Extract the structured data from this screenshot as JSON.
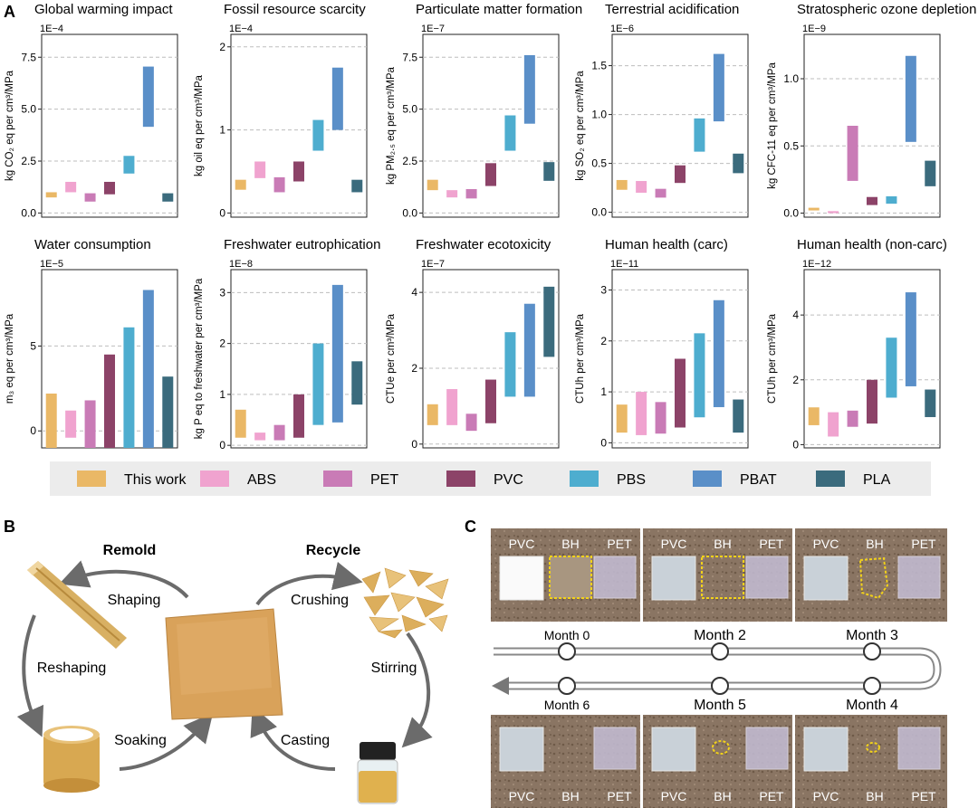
{
  "panel_letters": {
    "a": "A",
    "b": "B",
    "c": "C"
  },
  "colors": {
    "This work": "#EAB866",
    "ABS": "#F0A3CF",
    "PET": "#C97BB6",
    "PVC": "#8C4368",
    "PBS": "#4EADCF",
    "PBAT": "#5A8FC8",
    "PLA": "#3B6B7D"
  },
  "legend": [
    "This work",
    "ABS",
    "PET",
    "PVC",
    "PBS",
    "PBAT",
    "PLA"
  ],
  "chart_data": [
    {
      "type": "bar",
      "title": "Global warming impact",
      "exponent": "1E−4",
      "ylabel": "kg CO₂ eq per cm³/MPa",
      "ylim": [
        -0.2,
        8.6
      ],
      "ticks": [
        0,
        2.5,
        5,
        7.5
      ],
      "tick_labels": [
        "0.0",
        "2.5",
        "5.0",
        "7.5"
      ],
      "categories": [
        "This work",
        "ABS",
        "PET",
        "PVC",
        "PBS",
        "PBAT",
        "PLA"
      ],
      "ranges": [
        [
          0.75,
          1.0
        ],
        [
          1.0,
          1.5
        ],
        [
          0.55,
          0.95
        ],
        [
          0.9,
          1.5
        ],
        [
          1.9,
          2.75
        ],
        [
          4.15,
          7.05
        ],
        [
          0.55,
          0.95
        ]
      ]
    },
    {
      "type": "bar",
      "title": "Fossil resource scarcity",
      "exponent": "1E−4",
      "ylabel": "kg oil eq per cm³/MPa",
      "ylim": [
        -0.05,
        2.15
      ],
      "ticks": [
        0,
        1,
        2
      ],
      "tick_labels": [
        "0",
        "1",
        "2"
      ],
      "categories": [
        "This work",
        "ABS",
        "PET",
        "PVC",
        "PBS",
        "PBAT",
        "PLA"
      ],
      "ranges": [
        [
          0.28,
          0.4
        ],
        [
          0.42,
          0.62
        ],
        [
          0.25,
          0.43
        ],
        [
          0.38,
          0.62
        ],
        [
          0.75,
          1.12
        ],
        [
          1.0,
          1.75
        ],
        [
          0.25,
          0.4
        ]
      ]
    },
    {
      "type": "bar",
      "title": "Particulate matter formation",
      "exponent": "1E−7",
      "ylabel": "kg PM₂.₅ eq per cm³/MPa",
      "ylim": [
        -0.2,
        8.6
      ],
      "ticks": [
        0,
        2.5,
        5,
        7.5
      ],
      "tick_labels": [
        "0.0",
        "2.5",
        "5.0",
        "7.5"
      ],
      "categories": [
        "This work",
        "ABS",
        "PET",
        "PVC",
        "PBS",
        "PBAT",
        "PLA"
      ],
      "ranges": [
        [
          1.1,
          1.6
        ],
        [
          0.75,
          1.1
        ],
        [
          0.7,
          1.15
        ],
        [
          1.3,
          2.4
        ],
        [
          3.0,
          4.7
        ],
        [
          4.3,
          7.6
        ],
        [
          1.55,
          2.45
        ]
      ]
    },
    {
      "type": "bar",
      "title": "Terrestrial acidification",
      "exponent": "1E−6",
      "ylabel": "kg SO₂ eq per cm³/MPa",
      "ylim": [
        -0.05,
        1.82
      ],
      "ticks": [
        0,
        0.5,
        1,
        1.5
      ],
      "tick_labels": [
        "0.0",
        "0.5",
        "1.0",
        "1.5"
      ],
      "categories": [
        "This work",
        "ABS",
        "PET",
        "PVC",
        "PBS",
        "PBAT",
        "PLA"
      ],
      "ranges": [
        [
          0.23,
          0.33
        ],
        [
          0.2,
          0.32
        ],
        [
          0.15,
          0.24
        ],
        [
          0.3,
          0.48
        ],
        [
          0.62,
          0.96
        ],
        [
          0.93,
          1.62
        ],
        [
          0.4,
          0.6
        ]
      ]
    },
    {
      "type": "bar",
      "title": "Stratospheric ozone depletion",
      "exponent": "1E−9",
      "ylabel": "kg CFC-11 eq per cm³/MPa",
      "ylim": [
        -0.03,
        1.33
      ],
      "ticks": [
        0,
        0.5,
        1
      ],
      "tick_labels": [
        "0.0",
        "0.5",
        "1.0"
      ],
      "categories": [
        "This work",
        "ABS",
        "PET",
        "PVC",
        "PBS",
        "PBAT",
        "PLA"
      ],
      "ranges": [
        [
          0.02,
          0.04
        ],
        [
          0.0,
          0.015
        ],
        [
          0.24,
          0.65
        ],
        [
          0.06,
          0.12
        ],
        [
          0.07,
          0.125
        ],
        [
          0.53,
          1.17
        ],
        [
          0.2,
          0.39
        ]
      ]
    },
    {
      "type": "bar",
      "title": "Water consumption",
      "exponent": "1E−5",
      "ylabel": "m₃ eq per cm³/MPa",
      "ylim": [
        -1.0,
        9.5
      ],
      "ticks": [
        0,
        5
      ],
      "tick_labels": [
        "0",
        "5"
      ],
      "categories": [
        "This work",
        "ABS",
        "PET",
        "PVC",
        "PBS",
        "PBAT",
        "PLA"
      ],
      "ranges": [
        [
          -1.0,
          2.2
        ],
        [
          -0.4,
          1.2
        ],
        [
          -1.0,
          1.8
        ],
        [
          -1.0,
          4.5
        ],
        [
          -1.0,
          6.1
        ],
        [
          -1.0,
          8.3
        ],
        [
          -1.0,
          3.2
        ]
      ]
    },
    {
      "type": "bar",
      "title": "Freshwater eutrophication",
      "exponent": "1E−8",
      "ylabel": "kg P eq to freshwater per cm³/MPa",
      "ylim": [
        -0.05,
        3.45
      ],
      "ticks": [
        0,
        1,
        2,
        3
      ],
      "tick_labels": [
        "0",
        "1",
        "2",
        "3"
      ],
      "categories": [
        "This work",
        "ABS",
        "PET",
        "PVC",
        "PBS",
        "PBAT",
        "PLA"
      ],
      "ranges": [
        [
          0.15,
          0.7
        ],
        [
          0.1,
          0.25
        ],
        [
          0.1,
          0.4
        ],
        [
          0.15,
          1.0
        ],
        [
          0.4,
          2.0
        ],
        [
          0.45,
          3.15
        ],
        [
          0.8,
          1.65
        ]
      ]
    },
    {
      "type": "bar",
      "title": "Freshwater ecotoxicity",
      "exponent": "1E−7",
      "ylabel": "CTUe per cm³/MPa",
      "ylim": [
        -0.1,
        4.6
      ],
      "ticks": [
        0,
        2,
        4
      ],
      "tick_labels": [
        "0",
        "2",
        "4"
      ],
      "categories": [
        "This work",
        "ABS",
        "PET",
        "PVC",
        "PBS",
        "PBAT",
        "PLA"
      ],
      "ranges": [
        [
          0.5,
          1.05
        ],
        [
          0.5,
          1.45
        ],
        [
          0.35,
          0.8
        ],
        [
          0.55,
          1.7
        ],
        [
          1.25,
          2.95
        ],
        [
          1.25,
          3.7
        ],
        [
          2.3,
          4.15
        ]
      ]
    },
    {
      "type": "bar",
      "title": "Human health (carc)",
      "exponent": "1E−11",
      "ylabel": "CTUh per cm³/MPa",
      "ylim": [
        -0.1,
        3.4
      ],
      "ticks": [
        0,
        1,
        2,
        3
      ],
      "tick_labels": [
        "0",
        "1",
        "2",
        "3"
      ],
      "categories": [
        "This work",
        "ABS",
        "PET",
        "PVC",
        "PBS",
        "PBAT",
        "PLA"
      ],
      "ranges": [
        [
          0.2,
          0.75
        ],
        [
          0.15,
          1.0
        ],
        [
          0.18,
          0.8
        ],
        [
          0.3,
          1.65
        ],
        [
          0.5,
          2.15
        ],
        [
          0.7,
          2.8
        ],
        [
          0.2,
          0.85
        ]
      ]
    },
    {
      "type": "bar",
      "title": "Human health (non-carc)",
      "exponent": "1E−12",
      "ylabel": "CTUh per cm³/MPa",
      "ylim": [
        -0.1,
        5.4
      ],
      "ticks": [
        0,
        2,
        4
      ],
      "tick_labels": [
        "0",
        "2",
        "4"
      ],
      "categories": [
        "This work",
        "ABS",
        "PET",
        "PVC",
        "PBS",
        "PBAT",
        "PLA"
      ],
      "ranges": [
        [
          0.6,
          1.15
        ],
        [
          0.25,
          1.0
        ],
        [
          0.55,
          1.05
        ],
        [
          0.65,
          2.0
        ],
        [
          1.45,
          3.3
        ],
        [
          1.8,
          4.7
        ],
        [
          0.85,
          1.7
        ]
      ]
    }
  ],
  "panel_b": {
    "remold": "Remold",
    "recycle": "Recycle",
    "steps": {
      "shaping": "Shaping",
      "crushing": "Crushing",
      "reshaping": "Reshaping",
      "stirring": "Stirring",
      "soaking": "Soaking",
      "casting": "Casting"
    }
  },
  "panel_c": {
    "labels": {
      "pvc": "PVC",
      "bh": "BH",
      "pet": "PET"
    },
    "months_top": [
      "Month 0",
      "Month 2",
      "Month 3"
    ],
    "months_bottom": [
      "Month 6",
      "Month 5",
      "Month 4"
    ]
  }
}
